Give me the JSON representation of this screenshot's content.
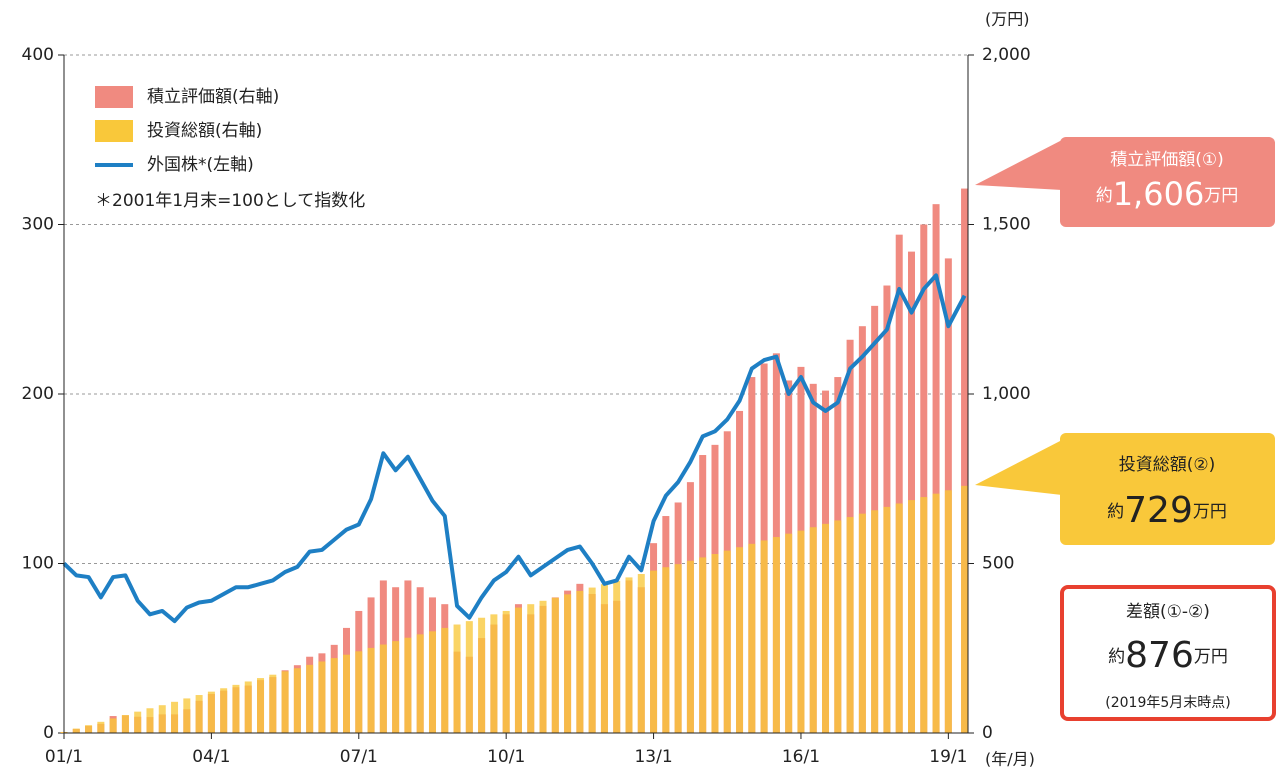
{
  "chart_data": {
    "type": "bar-line",
    "x": [
      2001,
      2001.25,
      2001.5,
      2001.75,
      2002,
      2002.25,
      2002.5,
      2002.75,
      2003,
      2003.25,
      2003.5,
      2003.75,
      2004,
      2004.25,
      2004.5,
      2004.75,
      2005,
      2005.25,
      2005.5,
      2005.75,
      2006,
      2006.25,
      2006.5,
      2006.75,
      2007,
      2007.25,
      2007.5,
      2007.75,
      2008,
      2008.25,
      2008.5,
      2008.75,
      2009,
      2009.25,
      2009.5,
      2009.75,
      2010,
      2010.25,
      2010.5,
      2010.75,
      2011,
      2011.25,
      2011.5,
      2011.75,
      2012,
      2012.25,
      2012.5,
      2012.75,
      2013,
      2013.25,
      2013.5,
      2013.75,
      2014,
      2014.25,
      2014.5,
      2014.75,
      2015,
      2015.25,
      2015.5,
      2015.75,
      2016,
      2016.25,
      2016.5,
      2016.75,
      2017,
      2017.25,
      2017.5,
      2017.75,
      2018,
      2018.25,
      2018.5,
      2018.75,
      2019,
      2019.33
    ],
    "series": [
      {
        "name": "積立評価額(右軸)",
        "color": "#f08a80",
        "axis": "y2",
        "values": [
          3,
          12,
          21,
          27,
          50,
          52,
          48,
          47,
          55,
          55,
          70,
          95,
          115,
          125,
          135,
          140,
          156,
          165,
          185,
          200,
          225,
          235,
          260,
          310,
          360,
          400,
          450,
          430,
          450,
          430,
          400,
          380,
          240,
          225,
          280,
          320,
          350,
          380,
          350,
          375,
          400,
          420,
          440,
          410,
          380,
          390,
          450,
          430,
          560,
          640,
          680,
          740,
          820,
          850,
          890,
          950,
          1050,
          1090,
          1120,
          1040,
          1080,
          1030,
          1010,
          1050,
          1160,
          1200,
          1260,
          1320,
          1470,
          1420,
          1500,
          1560,
          1400,
          1606
        ]
      },
      {
        "name": "投資総額(右軸)",
        "color": "#f9c83a",
        "axis": "y2",
        "values": [
          3,
          13,
          23,
          33,
          43,
          53,
          63,
          73,
          82,
          92,
          102,
          112,
          122,
          132,
          142,
          152,
          162,
          172,
          182,
          191,
          201,
          211,
          221,
          231,
          241,
          251,
          261,
          271,
          281,
          291,
          300,
          310,
          320,
          330,
          340,
          350,
          360,
          370,
          380,
          390,
          399,
          409,
          419,
          429,
          439,
          449,
          459,
          469,
          479,
          489,
          498,
          508,
          518,
          528,
          538,
          548,
          558,
          568,
          578,
          588,
          597,
          607,
          617,
          627,
          637,
          647,
          657,
          667,
          677,
          687,
          696,
          706,
          716,
          729
        ]
      },
      {
        "name": "外国株*(左軸)",
        "color": "#1e7fc4",
        "values": [
          100,
          93,
          92,
          80,
          92,
          93,
          78,
          70,
          72,
          66,
          74,
          77,
          78,
          82,
          86,
          86,
          88,
          90,
          95,
          98,
          107,
          108,
          114,
          120,
          123,
          138,
          165,
          155,
          163,
          150,
          137,
          128,
          75,
          68,
          80,
          90,
          95,
          104,
          93,
          98,
          103,
          108,
          110,
          100,
          88,
          90,
          104,
          96,
          125,
          140,
          148,
          160,
          175,
          178,
          185,
          196,
          215,
          220,
          222,
          200,
          210,
          195,
          190,
          195,
          215,
          222,
          230,
          238,
          262,
          248,
          262,
          270,
          240,
          258
        ]
      }
    ],
    "xlim": [
      2001,
      2019.4
    ],
    "xticks": [
      {
        "value": 2001,
        "label": "01/1"
      },
      {
        "value": 2004,
        "label": "04/1"
      },
      {
        "value": 2007,
        "label": "07/1"
      },
      {
        "value": 2010,
        "label": "10/1"
      },
      {
        "value": 2013,
        "label": "13/1"
      },
      {
        "value": 2016,
        "label": "16/1"
      },
      {
        "value": 2019,
        "label": "19/1"
      }
    ],
    "x_unit": "(年/月)",
    "ylim": [
      0,
      400
    ],
    "yticks": [
      0,
      100,
      200,
      300,
      400
    ],
    "y2lim": [
      0,
      2000
    ],
    "y2ticks": [
      0,
      500,
      {
        "value": 1000,
        "label": "1,000"
      },
      {
        "value": 1500,
        "label": "1,500"
      },
      {
        "value": 2000,
        "label": "2,000"
      }
    ],
    "y2_unit": "(万円)",
    "grid": true,
    "note": "＊2001年1月末=100として指数化",
    "callouts": [
      {
        "title": "積立評価額(①)",
        "prefix": "約",
        "amount": "1,606",
        "unit": "万円"
      },
      {
        "title": "投資総額(②)",
        "prefix": "約",
        "amount": "729",
        "unit": "万円"
      },
      {
        "title": "差額(①-②)",
        "prefix": "約",
        "amount": "876",
        "unit": "万円",
        "footnote": "(2019年5月末時点)"
      }
    ]
  }
}
